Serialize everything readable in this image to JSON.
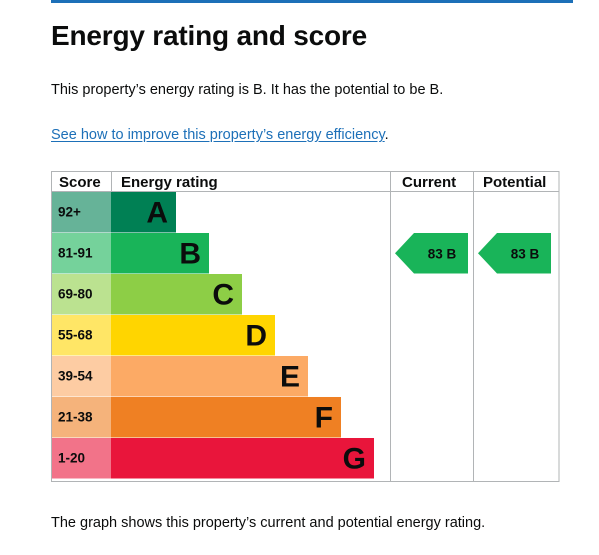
{
  "page": {
    "heading": "Energy rating and score",
    "intro": "This property’s energy rating is B. It has the potential to be B.",
    "improve_link": "See how to improve this property’s energy efficiency",
    "improve_link_suffix": ".",
    "footer_text": "The graph shows this property’s current and potential energy rating."
  },
  "chart_data": {
    "type": "table",
    "columns": [
      "Score",
      "Energy rating",
      "Current",
      "Potential"
    ],
    "bands": [
      {
        "score": "92+",
        "letter": "A",
        "color": "#008054",
        "score_bg": "#66b398",
        "min": 92
      },
      {
        "score": "81-91",
        "letter": "B",
        "color": "#19b459",
        "score_bg": "#75d29b",
        "min": 81
      },
      {
        "score": "69-80",
        "letter": "C",
        "color": "#8dce46",
        "score_bg": "#bbe290",
        "min": 69
      },
      {
        "score": "55-68",
        "letter": "D",
        "color": "#ffd500",
        "score_bg": "#ffe666",
        "min": 55
      },
      {
        "score": "39-54",
        "letter": "E",
        "color": "#fcaa65",
        "score_bg": "#fdcca3",
        "min": 39
      },
      {
        "score": "21-38",
        "letter": "F",
        "color": "#ef8023",
        "score_bg": "#f5b37b",
        "min": 21
      },
      {
        "score": "1-20",
        "letter": "G",
        "color": "#e9153b",
        "score_bg": "#f27389",
        "min": 1
      }
    ],
    "current": {
      "score": 83,
      "rating": "B",
      "label": "83  B",
      "color": "#19b459"
    },
    "potential": {
      "score": 83,
      "rating": "B",
      "label": "83  B",
      "color": "#19b459"
    }
  }
}
